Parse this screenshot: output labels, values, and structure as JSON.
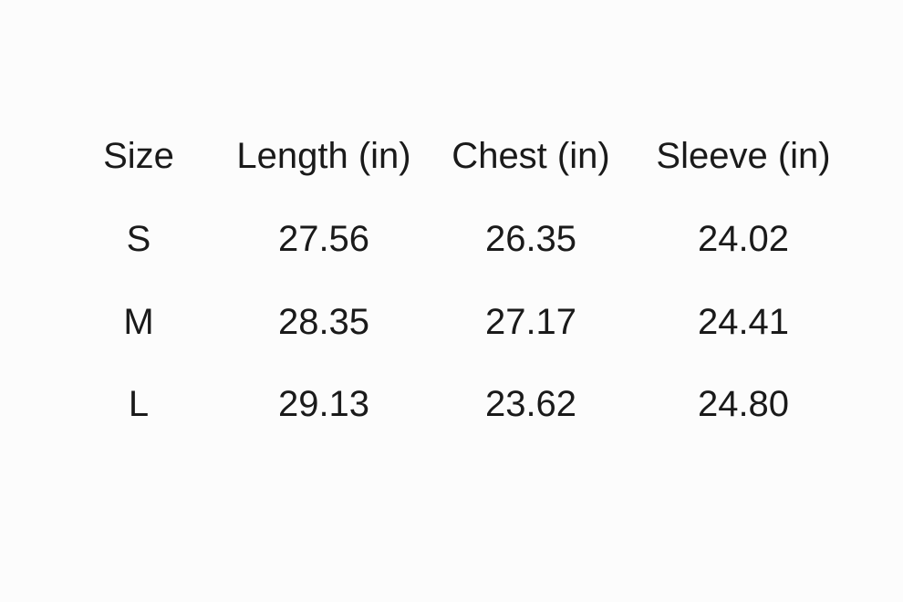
{
  "table": {
    "headers": [
      "Size",
      "Length (in)",
      "Chest (in)",
      "Sleeve (in)"
    ],
    "rows": [
      [
        "S",
        "27.56",
        "26.35",
        "24.02"
      ],
      [
        "M",
        "28.35",
        "27.17",
        "24.41"
      ],
      [
        "L",
        "29.13",
        "23.62",
        "24.80"
      ]
    ]
  }
}
